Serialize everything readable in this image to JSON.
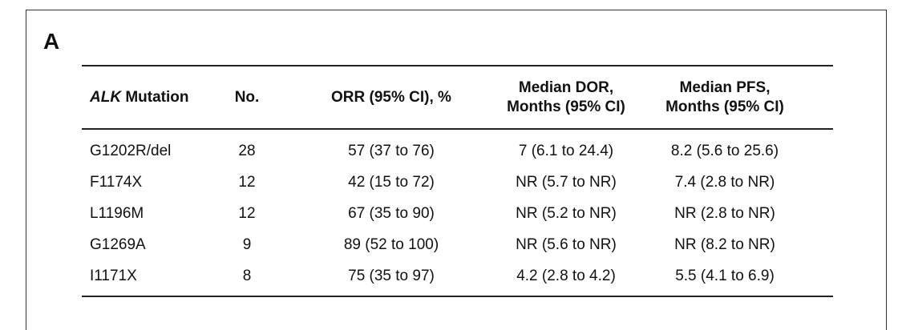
{
  "panel_label": "A",
  "table": {
    "headers": {
      "col0_italic": "ALK",
      "col0_rest": " Mutation",
      "col1": "No.",
      "col2": "ORR (95% CI), %",
      "col3_line1": "Median DOR,",
      "col3_line2": "Months (95% CI)",
      "col4_line1": "Median PFS,",
      "col4_line2": "Months (95% CI)"
    },
    "rows": [
      [
        "G1202R/del",
        "28",
        "57 (37 to 76)",
        "7 (6.1 to 24.4)",
        "8.2 (5.6 to 25.6)"
      ],
      [
        "F1174X",
        "12",
        "42 (15 to 72)",
        "NR (5.7 to NR)",
        "7.4 (2.8 to NR)"
      ],
      [
        "L1196M",
        "12",
        "67 (35 to 90)",
        "NR (5.2 to NR)",
        "NR (2.8 to NR)"
      ],
      [
        "G1269A",
        "9",
        "89 (52 to 100)",
        "NR (5.6 to NR)",
        "NR (8.2 to NR)"
      ],
      [
        "I1171X",
        "8",
        "75 (35 to 97)",
        "4.2 (2.8 to 4.2)",
        "5.5 (4.1 to 6.9)"
      ]
    ]
  }
}
